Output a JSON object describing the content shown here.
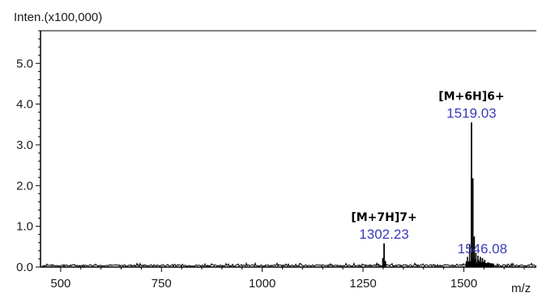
{
  "chart_data": {
    "type": "line",
    "ylabel": "Inten.(x100,000)",
    "xlabel": "m/z",
    "xlim": [
      450,
      1680
    ],
    "ylim": [
      0,
      5.8
    ],
    "x_ticks": [
      500,
      750,
      1000,
      1250,
      1500
    ],
    "x_tick_labels": [
      "500",
      "750",
      "1000",
      "1250",
      "1500"
    ],
    "y_ticks": [
      0.0,
      1.0,
      2.0,
      3.0,
      4.0,
      5.0
    ],
    "y_tick_labels": [
      "0.0",
      "1.0",
      "2.0",
      "3.0",
      "4.0",
      "5.0"
    ],
    "grid": false,
    "colors": {
      "trace": "#000000",
      "peak_label": "#3b3bb8",
      "axis": "#000000"
    },
    "peaks": [
      {
        "mz": 1302.23,
        "intensity": 0.58,
        "label": "1302.23",
        "ion": "[M+7H]7+"
      },
      {
        "mz": 1519.03,
        "intensity": 3.55,
        "label": "1519.03",
        "ion": "[M+6H]6+"
      },
      {
        "mz": 1546.08,
        "intensity": 0.22,
        "label": "1546.08"
      }
    ],
    "minor_peaks": [
      {
        "mz": 1299.0,
        "intensity": 0.22
      },
      {
        "mz": 1305.5,
        "intensity": 0.15
      },
      {
        "mz": 1509.0,
        "intensity": 0.25
      },
      {
        "mz": 1514.5,
        "intensity": 0.55
      },
      {
        "mz": 1522.5,
        "intensity": 2.18
      },
      {
        "mz": 1526.0,
        "intensity": 0.75
      },
      {
        "mz": 1530.0,
        "intensity": 0.35
      },
      {
        "mz": 1535.0,
        "intensity": 0.28
      },
      {
        "mz": 1541.0,
        "intensity": 0.25
      },
      {
        "mz": 1552.0,
        "intensity": 0.18
      },
      {
        "mz": 1560.0,
        "intensity": 0.12
      }
    ],
    "noise_level": 0.06
  }
}
